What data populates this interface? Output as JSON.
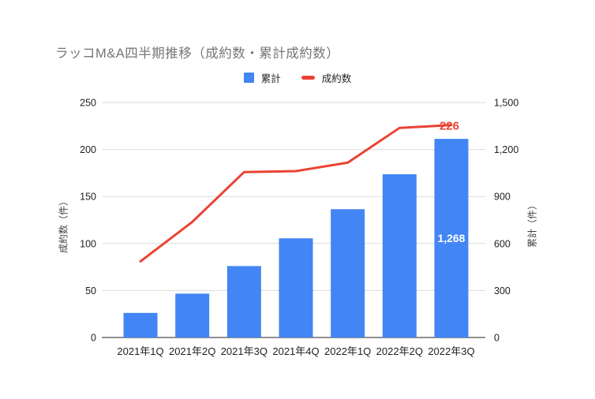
{
  "title": "ラッコM&A四半期推移（成約数・累計成約数）",
  "legend": [
    {
      "label": "累計",
      "swatch": "bar-square"
    },
    {
      "label": "成約数",
      "swatch": "line-dash"
    }
  ],
  "chart_data": {
    "type": "combo-bar-line",
    "categories": [
      "2021年1Q",
      "2021年2Q",
      "2021年3Q",
      "2021年4Q",
      "2022年1Q",
      "2022年2Q",
      "2022年3Q"
    ],
    "series": [
      {
        "name": "累計",
        "type": "bar",
        "axis": "right",
        "color": "#4285F4",
        "values": [
          157,
          280,
          456,
          633,
          819,
          1042,
          1268
        ],
        "data_label": {
          "index": 6,
          "text": "1,268"
        }
      },
      {
        "name": "成約数",
        "type": "line",
        "axis": "left",
        "color": "#EA4335",
        "values": [
          81,
          123,
          176,
          177,
          186,
          223,
          226
        ],
        "data_label": {
          "index": 6,
          "text": "226"
        }
      }
    ],
    "left_axis": {
      "title": "成約数（件）",
      "min": 0,
      "max": 250,
      "ticks": [
        {
          "value": 0,
          "label": "0"
        },
        {
          "value": 50,
          "label": "50"
        },
        {
          "value": 100,
          "label": "100"
        },
        {
          "value": 150,
          "label": "150"
        },
        {
          "value": 200,
          "label": "200"
        },
        {
          "value": 250,
          "label": "250"
        }
      ]
    },
    "right_axis": {
      "title": "累計（件）",
      "min": 0,
      "max": 1500,
      "ticks": [
        {
          "value": 0,
          "label": "0"
        },
        {
          "value": 300,
          "label": "300"
        },
        {
          "value": 600,
          "label": "600"
        },
        {
          "value": 900,
          "label": "900"
        },
        {
          "value": 1200,
          "label": "1,200"
        },
        {
          "value": 1500,
          "label": "1,500"
        }
      ]
    },
    "style": {
      "background": "#ffffff",
      "grid_color": "#dadada",
      "axis_line_color": "#212121",
      "tick_label_color": "#212121",
      "title_color": "#757575",
      "bar_label_color": "#ffffff",
      "grid": "horizontal-on",
      "legend_position": "top-center"
    }
  }
}
